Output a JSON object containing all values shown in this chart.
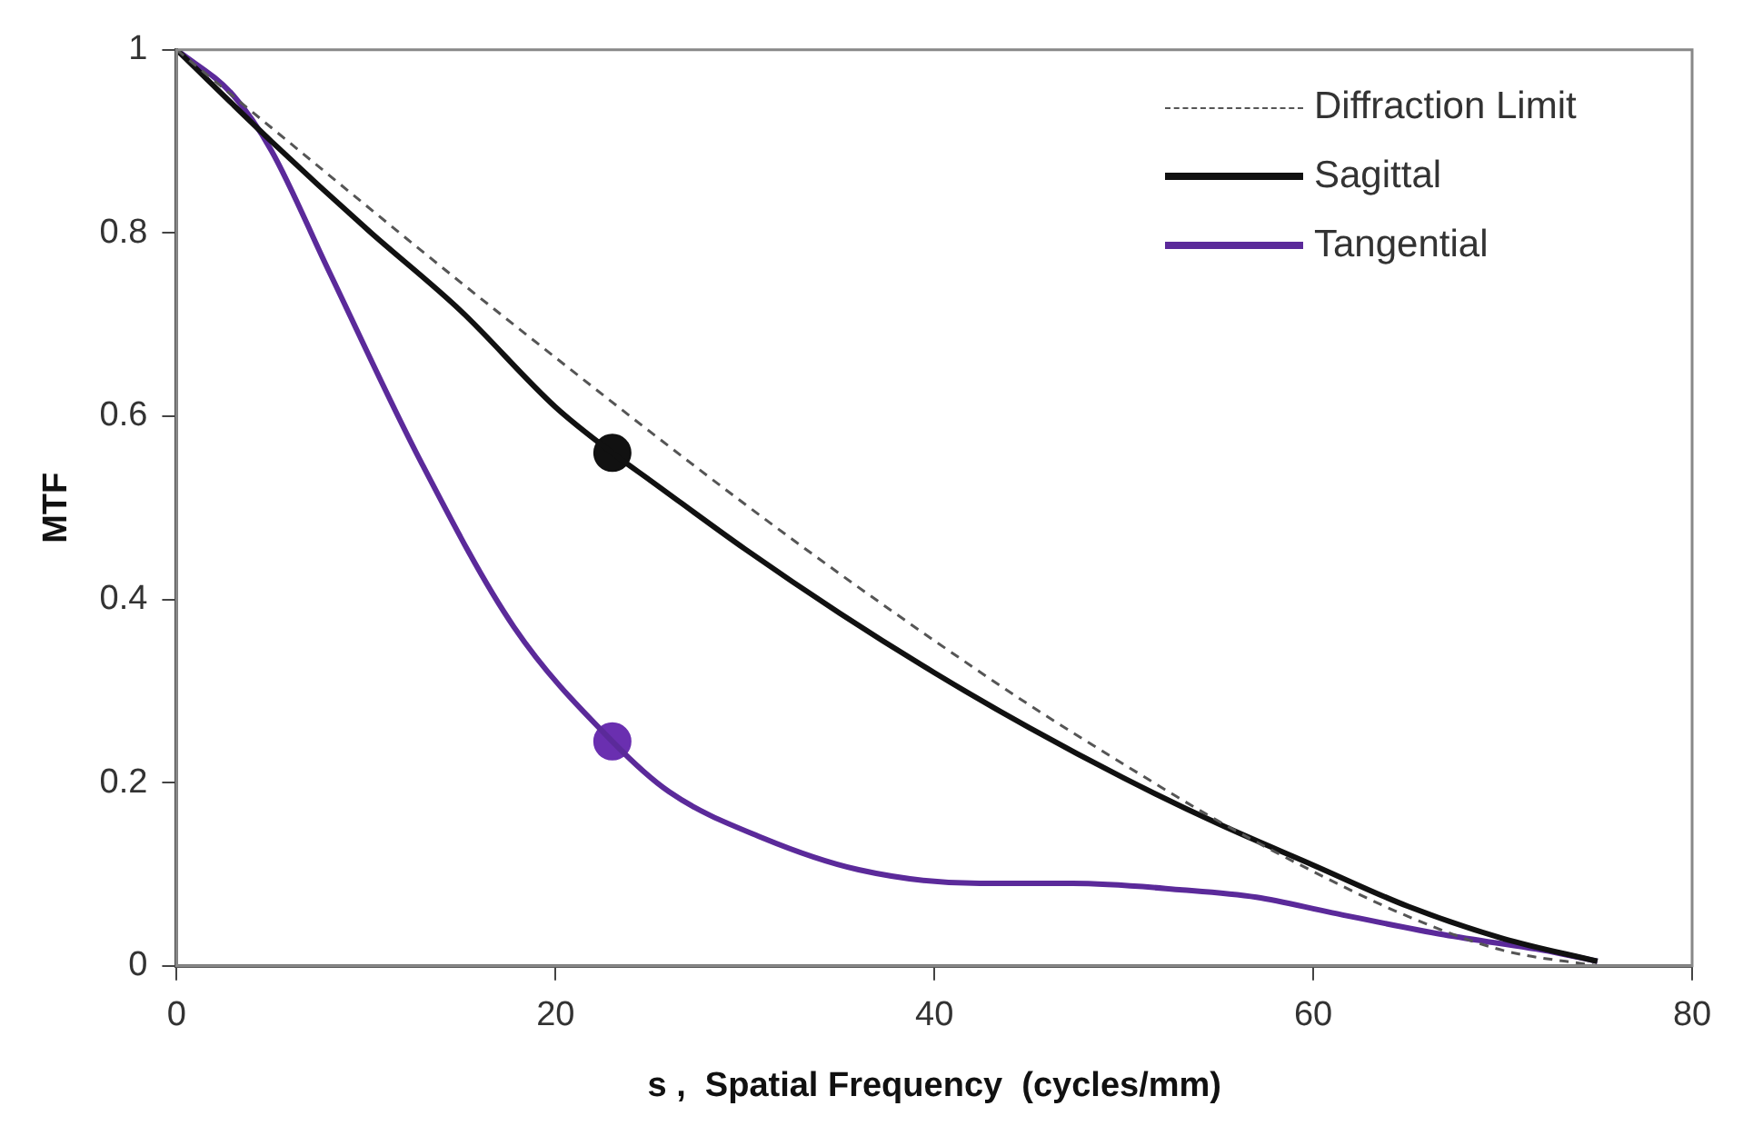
{
  "chart_data": {
    "type": "line",
    "xlabel": "s ,  Spatial Frequency  (cycles/mm)",
    "ylabel": "MTF",
    "xlim": [
      0,
      80
    ],
    "ylim": [
      0,
      1
    ],
    "xticks": [
      0,
      20,
      40,
      60,
      80
    ],
    "yticks": [
      0,
      0.2,
      0.4,
      0.6,
      0.8,
      1
    ],
    "grid": false,
    "legend": "top right",
    "marker": "none",
    "series": [
      {
        "name": "Diffraction Limit",
        "color": "#555555",
        "line_style": "dashed",
        "x": [
          0,
          5,
          10,
          15,
          20,
          25,
          30,
          35,
          40,
          45,
          50,
          55,
          60,
          65,
          70,
          75
        ],
        "values": [
          1,
          0.915,
          0.83,
          0.746,
          0.664,
          0.583,
          0.504,
          0.428,
          0.355,
          0.285,
          0.22,
          0.158,
          0.103,
          0.054,
          0.017,
          0
        ]
      },
      {
        "name": "Sagittal",
        "color": "#111111",
        "line_style": "solid",
        "x": [
          0,
          5,
          10,
          15,
          20,
          23,
          25,
          30,
          35,
          40,
          45,
          50,
          55,
          60,
          65,
          70,
          75
        ],
        "values": [
          1,
          0.9,
          0.805,
          0.715,
          0.61,
          0.56,
          0.53,
          0.455,
          0.385,
          0.32,
          0.26,
          0.205,
          0.155,
          0.11,
          0.065,
          0.03,
          0.005
        ]
      },
      {
        "name": "Tangential",
        "color": "#5b2a9a",
        "line_style": "solid",
        "x": [
          0,
          3,
          5,
          8,
          12.9,
          17.8,
          23,
          26,
          30.9,
          36,
          42.4,
          47.3,
          53.1,
          57,
          61,
          66.9,
          72.7,
          75
        ],
        "values": [
          1,
          0.95,
          0.89,
          0.76,
          0.55,
          0.37,
          0.245,
          0.19,
          0.14,
          0.105,
          0.09,
          0.09,
          0.083,
          0.075,
          0.058,
          0.034,
          0.015,
          0.005
        ]
      },
      {
        "type": "scatter",
        "color": "#111111",
        "marker": "circle",
        "x": [
          23
        ],
        "values": [
          0.56
        ]
      },
      {
        "type": "scatter",
        "color": "#6a2fb0",
        "marker": "circle",
        "x": [
          23
        ],
        "values": [
          0.245
        ]
      }
    ]
  }
}
